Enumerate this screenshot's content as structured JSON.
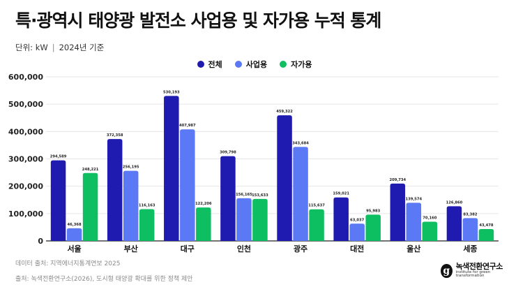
{
  "header": {
    "title": "특·광역시 태양광 발전소 사업용 및 자가용 누적 통계",
    "unit": "단위: kW",
    "year": "2024년 기준"
  },
  "footer": {
    "data_source": "데이터 출처: 지역에너지통계연보 2025",
    "source": "출처: 녹색전환연구소(2026), 도시형 태양광 확대를 위한 정책 제안"
  },
  "brand": {
    "logo_letter": "g",
    "name": "녹색전환연구소",
    "tagline": "institute for green transformation"
  },
  "colors": {
    "total": "#1f1ab0",
    "business": "#5b79f5",
    "self": "#0dbf60"
  },
  "chart_data": {
    "type": "bar",
    "categories": [
      "서울",
      "부산",
      "대구",
      "인천",
      "광주",
      "대전",
      "울산",
      "세종"
    ],
    "series": [
      {
        "name": "전체",
        "values": [
          294589,
          372358,
          530193,
          309798,
          459322,
          159021,
          209734,
          126860
        ]
      },
      {
        "name": "사업용",
        "values": [
          46368,
          256195,
          407987,
          156165,
          343684,
          63037,
          139574,
          83382
        ]
      },
      {
        "name": "자가용",
        "values": [
          248221,
          116163,
          122206,
          153633,
          115637,
          95983,
          70160,
          43478
        ]
      }
    ],
    "yticks": [
      "0",
      "100,000",
      "200,000",
      "300,000",
      "400,000",
      "500,000",
      "600,000"
    ],
    "ylim": [
      0,
      600000
    ],
    "grid": true,
    "legend_position": "top-center"
  }
}
